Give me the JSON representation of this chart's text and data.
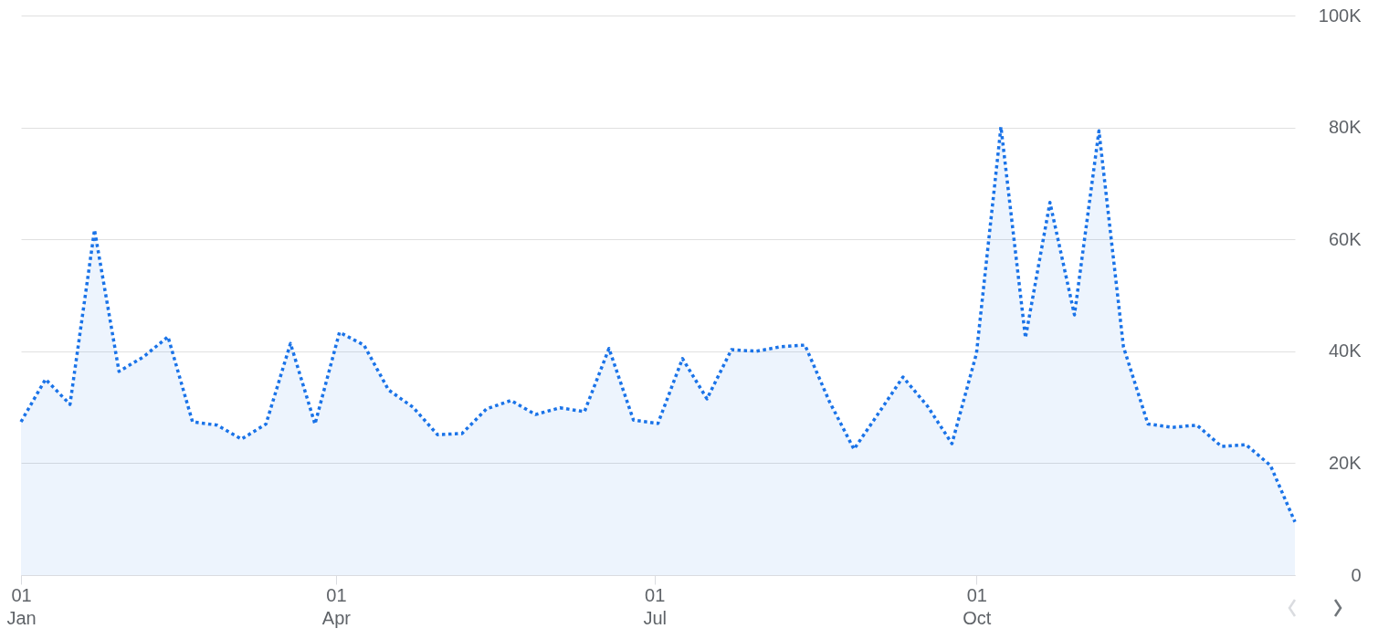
{
  "chart_data": {
    "type": "area",
    "line_style": "dotted",
    "grid": "y",
    "x": [
      "--01-01",
      "--01-08",
      "--01-15",
      "--01-22",
      "--01-29",
      "--02-05",
      "--02-12",
      "--02-19",
      "--02-26",
      "--03-05",
      "--03-12",
      "--03-19",
      "--03-26",
      "--04-02",
      "--04-09",
      "--04-16",
      "--04-23",
      "--04-30",
      "--05-07",
      "--05-14",
      "--05-21",
      "--05-28",
      "--06-04",
      "--06-11",
      "--06-18",
      "--06-25",
      "--07-02",
      "--07-09",
      "--07-16",
      "--07-23",
      "--07-30",
      "--08-06",
      "--08-13",
      "--08-20",
      "--08-27",
      "--09-03",
      "--09-10",
      "--09-17",
      "--09-24",
      "--10-01",
      "--10-08",
      "--10-15",
      "--10-22",
      "--10-29",
      "--11-05",
      "--11-12",
      "--11-19",
      "--11-26",
      "--12-03",
      "--12-10",
      "--12-17",
      "--12-24",
      "--12-31"
    ],
    "series": [
      {
        "color": "#1a73e8",
        "values": [
          27400,
          35000,
          30500,
          61700,
          36400,
          39000,
          42600,
          27400,
          26800,
          24300,
          27000,
          41400,
          27000,
          43400,
          41100,
          33100,
          30000,
          25100,
          25300,
          29700,
          31200,
          28700,
          29900,
          29200,
          40500,
          27700,
          27100,
          38700,
          31500,
          40300,
          40000,
          40800,
          41100,
          31000,
          22500,
          28900,
          35400,
          30200,
          23500,
          39600,
          80100,
          42400,
          66600,
          46500,
          79400,
          40800,
          27000,
          26400,
          26800,
          23000,
          23300,
          19600,
          9500
        ]
      }
    ],
    "xlim": [
      "--01-01",
      "--12-31"
    ],
    "xticks": [
      {
        "value": "--01-01",
        "label": "01\nJan"
      },
      {
        "value": "--04-01",
        "label": "01\nApr"
      },
      {
        "value": "--07-01",
        "label": "01\nJul"
      },
      {
        "value": "--10-01",
        "label": "01\nOct"
      }
    ],
    "ylim": [
      0,
      100000
    ],
    "yticks": [
      {
        "value": 0,
        "label": "0"
      },
      {
        "value": 20000,
        "label": "20K"
      },
      {
        "value": 40000,
        "label": "40K"
      },
      {
        "value": 60000,
        "label": "60K"
      },
      {
        "value": 80000,
        "label": "80K"
      },
      {
        "value": 100000,
        "label": "100K"
      }
    ]
  }
}
